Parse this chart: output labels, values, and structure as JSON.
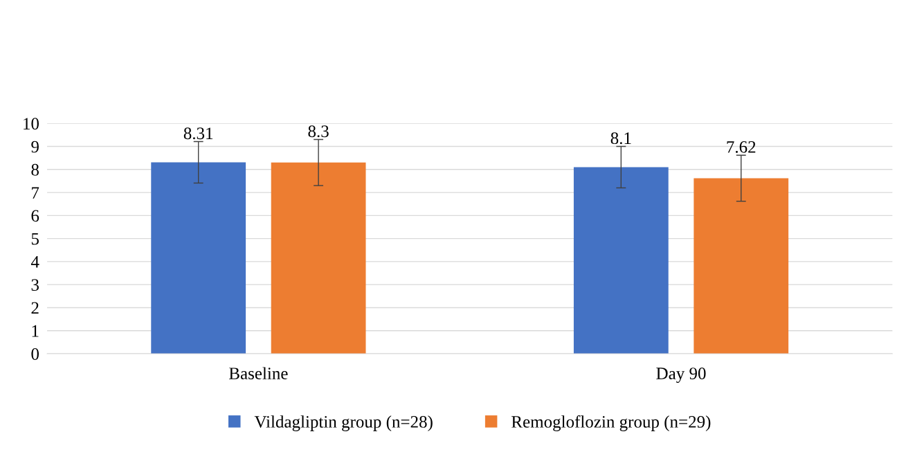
{
  "chart_data": {
    "type": "bar",
    "categories": [
      "Baseline",
      "Day 90"
    ],
    "series": [
      {
        "name": "Vildagliptin group (n=28)",
        "color": "#4472c4",
        "values": [
          8.31,
          8.1
        ],
        "errors": [
          0.9,
          0.9
        ]
      },
      {
        "name": "Remogloflozin group (n=29)",
        "color": "#ed7d31",
        "values": [
          8.3,
          7.62
        ],
        "errors": [
          1.0,
          1.0
        ]
      }
    ],
    "ylim": [
      0,
      10
    ],
    "yticks": [
      0,
      1,
      2,
      3,
      4,
      5,
      6,
      7,
      8,
      9,
      10
    ],
    "grid": "y",
    "legend": "bottom",
    "data_labels": true
  }
}
